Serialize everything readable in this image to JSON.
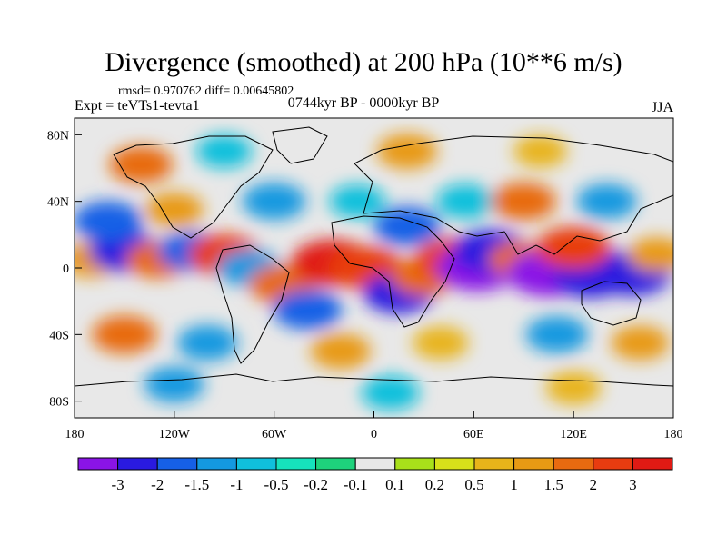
{
  "title": "Divergence (smoothed) at 200 hPa (10**6 m/s)",
  "stats": "rmsd= 0.970762 diff= 0.00645802",
  "experiment": "Expt = teVTs1-tevta1",
  "period": "0744kyr BP - 0000kyr BP",
  "season": "JJA",
  "map": {
    "lon_range": [
      -180,
      180
    ],
    "lat_range": [
      -90,
      90
    ],
    "y_ticks": [
      {
        "label": "80N",
        "lat": 80
      },
      {
        "label": "40N",
        "lat": 40
      },
      {
        "label": "0",
        "lat": 0
      },
      {
        "label": "40S",
        "lat": -40
      },
      {
        "label": "80S",
        "lat": -80
      }
    ],
    "x_ticks": [
      {
        "label": "180",
        "lon": -180
      },
      {
        "label": "120W",
        "lon": -120
      },
      {
        "label": "60W",
        "lon": -60
      },
      {
        "label": "0",
        "lon": 0
      },
      {
        "label": "60E",
        "lon": 60
      },
      {
        "label": "120E",
        "lon": 120
      },
      {
        "label": "180",
        "lon": 180
      }
    ]
  },
  "colorbar": {
    "colors": [
      "#8a14e6",
      "#2a1ae0",
      "#1660e6",
      "#1499e0",
      "#10c0dc",
      "#16e2bc",
      "#1ed27c",
      "#e8e8e8",
      "#a8e01a",
      "#d8e01a",
      "#e8b41a",
      "#e89a14",
      "#e86a10",
      "#e83c10",
      "#e01a14"
    ],
    "labels": [
      "-3",
      "-2",
      "-1.5",
      "-1",
      "-0.5",
      "-0.2",
      "-0.1",
      "0.1",
      "0.2",
      "0.5",
      "1",
      "1.5",
      "2",
      "3"
    ]
  },
  "field": {
    "cells": [
      {
        "lon": -170,
        "lat": 5,
        "value": 1.2
      },
      {
        "lon": -150,
        "lat": 10,
        "value": -2.2
      },
      {
        "lon": -130,
        "lat": 5,
        "value": 1.5
      },
      {
        "lon": -110,
        "lat": 10,
        "value": -1.8
      },
      {
        "lon": -90,
        "lat": 8,
        "value": 2.2
      },
      {
        "lon": -75,
        "lat": 0,
        "value": -1.5
      },
      {
        "lon": -55,
        "lat": -10,
        "value": 1.8
      },
      {
        "lon": -40,
        "lat": -25,
        "value": -2.0
      },
      {
        "lon": -25,
        "lat": 3,
        "value": 3.2
      },
      {
        "lon": -5,
        "lat": 0,
        "value": 2.6
      },
      {
        "lon": 15,
        "lat": -15,
        "value": -2.2
      },
      {
        "lon": 30,
        "lat": -5,
        "value": 1.8
      },
      {
        "lon": 48,
        "lat": 5,
        "value": 2.8
      },
      {
        "lon": 62,
        "lat": 0,
        "value": -3.2
      },
      {
        "lon": 70,
        "lat": 10,
        "value": -2.6
      },
      {
        "lon": 88,
        "lat": 5,
        "value": 1.5
      },
      {
        "lon": 105,
        "lat": -3,
        "value": -3.3
      },
      {
        "lon": 130,
        "lat": -5,
        "value": -2.6
      },
      {
        "lon": 155,
        "lat": -3,
        "value": -3.0
      },
      {
        "lon": 120,
        "lat": 12,
        "value": 2.5
      },
      {
        "lon": 170,
        "lat": 8,
        "value": 1.0
      },
      {
        "lon": -160,
        "lat": 28,
        "value": -2.0
      },
      {
        "lon": -120,
        "lat": 35,
        "value": 1.0
      },
      {
        "lon": -60,
        "lat": 40,
        "value": -1.5
      },
      {
        "lon": -10,
        "lat": 40,
        "value": -0.8
      },
      {
        "lon": 20,
        "lat": 25,
        "value": -1.8
      },
      {
        "lon": 55,
        "lat": 40,
        "value": -1.0
      },
      {
        "lon": 90,
        "lat": 40,
        "value": 1.6
      },
      {
        "lon": 140,
        "lat": 40,
        "value": -1.2
      },
      {
        "lon": -140,
        "lat": 62,
        "value": 1.5
      },
      {
        "lon": -90,
        "lat": 70,
        "value": -0.8
      },
      {
        "lon": 20,
        "lat": 70,
        "value": 1.2
      },
      {
        "lon": 100,
        "lat": 70,
        "value": 0.6
      },
      {
        "lon": -150,
        "lat": -40,
        "value": 1.6
      },
      {
        "lon": -100,
        "lat": -45,
        "value": -1.2
      },
      {
        "lon": -20,
        "lat": -50,
        "value": 1.2
      },
      {
        "lon": 40,
        "lat": -45,
        "value": 0.8
      },
      {
        "lon": 110,
        "lat": -40,
        "value": -1.4
      },
      {
        "lon": 160,
        "lat": -45,
        "value": 1.0
      },
      {
        "lon": -120,
        "lat": -70,
        "value": -1.2
      },
      {
        "lon": 10,
        "lat": -75,
        "value": -1.0
      },
      {
        "lon": 120,
        "lat": -72,
        "value": 0.8
      }
    ]
  }
}
